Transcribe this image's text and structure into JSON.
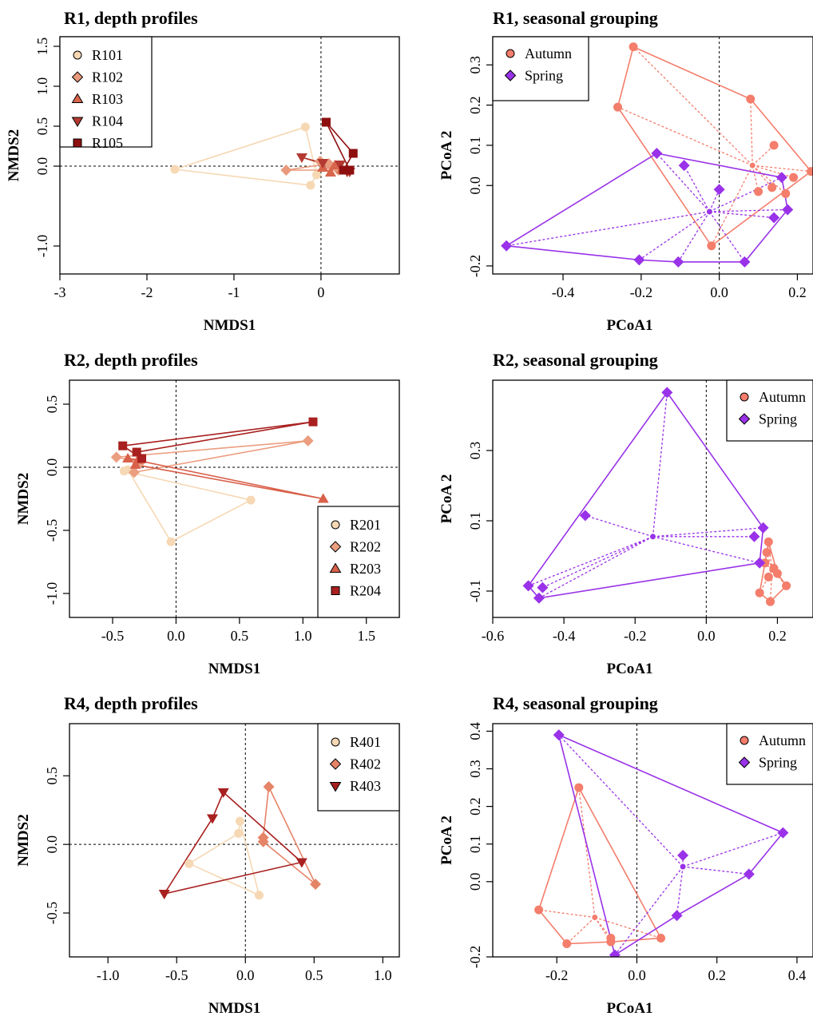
{
  "colors": {
    "R1_1": "#f6d8b4",
    "R1_2": "#e99a7c",
    "R1_3": "#d8654c",
    "R1_4": "#b43a31",
    "R1_5": "#8e0f0f",
    "R2_1": "#f6d8b4",
    "R2_2": "#ec9e80",
    "R2_3": "#d9604a",
    "R2_4": "#a8201f",
    "R4_1": "#f6d8b4",
    "R4_2": "#e58467",
    "R4_3": "#a8201f",
    "autumn": "#f47d6b",
    "spring": "#9932e8"
  },
  "chart_data": [
    {
      "id": "p1",
      "type": "scatter",
      "title": "R1, depth profiles",
      "xlabel": "NMDS1",
      "ylabel": "NMDS2",
      "xlim": [
        -3.0,
        0.9
      ],
      "ylim": [
        -1.35,
        1.62
      ],
      "xticks": [
        -3,
        -2,
        -1,
        0
      ],
      "xtick_labels": [
        "-3",
        "-2",
        "-1",
        "0"
      ],
      "yticks": [
        -1.0,
        0.0,
        0.5,
        1.0,
        1.5
      ],
      "ytick_labels": [
        "-1.0",
        "0.0",
        "0.5",
        "1.0",
        "1.5"
      ],
      "legend_pos": "top-left",
      "series": [
        {
          "name": "R101",
          "marker": "circle",
          "color_key": "R1_1",
          "connect": "polygon",
          "points": [
            [
              -0.18,
              0.49
            ],
            [
              -1.68,
              -0.04
            ],
            [
              -0.12,
              -0.24
            ],
            [
              -0.05,
              -0.11
            ]
          ]
        },
        {
          "name": "R102",
          "marker": "diamond",
          "color_key": "R1_2",
          "connect": "polygon",
          "points": [
            [
              -0.4,
              -0.05
            ],
            [
              0.09,
              0.03
            ],
            [
              -0.01,
              0.06
            ],
            [
              0.2,
              -0.05
            ]
          ]
        },
        {
          "name": "R103",
          "marker": "triangle-up",
          "color_key": "R1_3",
          "connect": "polygon",
          "points": [
            [
              0.02,
              -0.02
            ],
            [
              0.11,
              -0.08
            ],
            [
              0.16,
              0.01
            ],
            [
              0.24,
              -0.04
            ]
          ]
        },
        {
          "name": "R104",
          "marker": "triangle-down",
          "color_key": "R1_4",
          "connect": "polygon",
          "points": [
            [
              -0.22,
              0.11
            ],
            [
              0.02,
              0.04
            ],
            [
              0.22,
              0.02
            ],
            [
              0.3,
              -0.07
            ],
            [
              0.33,
              -0.07
            ]
          ]
        },
        {
          "name": "R105",
          "marker": "square",
          "color_key": "R1_5",
          "connect": "polygon",
          "points": [
            [
              0.06,
              0.55
            ],
            [
              0.37,
              0.16
            ],
            [
              0.26,
              -0.05
            ],
            [
              0.33,
              -0.05
            ]
          ]
        }
      ]
    },
    {
      "id": "p2",
      "type": "scatter",
      "title": "R1, seasonal grouping",
      "xlabel": "PCoA1",
      "ylabel": "PCoA 2",
      "xlim": [
        -0.58,
        0.24
      ],
      "ylim": [
        -0.22,
        0.37
      ],
      "xticks": [
        -0.4,
        -0.2,
        0.0,
        0.2
      ],
      "xtick_labels": [
        "-0.4",
        "-0.2",
        "0.0",
        "0.2"
      ],
      "yticks": [
        -0.2,
        0.0,
        0.1,
        0.2,
        0.3
      ],
      "ytick_labels": [
        "-0.2",
        "0.0",
        "0.1",
        "0.2",
        "0.3"
      ],
      "legend_pos": "top-left",
      "series": [
        {
          "name": "Autumn",
          "marker": "circle",
          "color_key": "autumn",
          "connect": "hull-spider",
          "centroid": [
            0.085,
            0.05
          ],
          "hull": [
            [
              -0.22,
              0.345
            ],
            [
              0.08,
              0.215
            ],
            [
              0.235,
              0.035
            ],
            [
              -0.02,
              -0.15
            ],
            [
              -0.26,
              0.195
            ]
          ],
          "points": [
            [
              -0.22,
              0.345
            ],
            [
              -0.26,
              0.195
            ],
            [
              0.08,
              0.215
            ],
            [
              0.14,
              0.1
            ],
            [
              0.235,
              0.035
            ],
            [
              0.19,
              0.02
            ],
            [
              0.135,
              -0.005
            ],
            [
              0.1,
              -0.015
            ],
            [
              0.17,
              -0.02
            ],
            [
              -0.02,
              -0.15
            ]
          ]
        },
        {
          "name": "Spring",
          "marker": "diamond",
          "color_key": "spring",
          "connect": "hull-spider",
          "centroid": [
            -0.025,
            -0.065
          ],
          "hull": [
            [
              -0.16,
              0.08
            ],
            [
              0.16,
              0.02
            ],
            [
              0.175,
              -0.06
            ],
            [
              0.065,
              -0.19
            ],
            [
              -0.105,
              -0.19
            ],
            [
              -0.205,
              -0.185
            ],
            [
              -0.545,
              -0.15
            ]
          ],
          "points": [
            [
              -0.16,
              0.08
            ],
            [
              -0.09,
              0.05
            ],
            [
              0.0,
              -0.01
            ],
            [
              0.16,
              0.02
            ],
            [
              0.175,
              -0.06
            ],
            [
              0.14,
              -0.08
            ],
            [
              0.065,
              -0.19
            ],
            [
              -0.105,
              -0.19
            ],
            [
              -0.205,
              -0.185
            ],
            [
              -0.545,
              -0.15
            ]
          ]
        }
      ]
    },
    {
      "id": "p3",
      "type": "scatter",
      "title": "R2, depth profiles",
      "xlabel": "NMDS1",
      "ylabel": "NMDS2",
      "xlim": [
        -0.84,
        1.76
      ],
      "ylim": [
        -1.19,
        0.69
      ],
      "xticks": [
        -0.5,
        0.0,
        0.5,
        1.0,
        1.5
      ],
      "xtick_labels": [
        "-0.5",
        "0.0",
        "0.5",
        "1.0",
        "1.5"
      ],
      "yticks": [
        -1.0,
        -0.5,
        0.0,
        0.5
      ],
      "ytick_labels": [
        "-1.0",
        "-0.5",
        "0.0",
        "0.5"
      ],
      "legend_pos": "bottom-right",
      "series": [
        {
          "name": "R201",
          "marker": "circle",
          "color_key": "R2_1",
          "connect": "polygon",
          "points": [
            [
              -0.41,
              -0.03
            ],
            [
              0.59,
              -0.26
            ],
            [
              -0.04,
              -0.59
            ],
            [
              -0.38,
              -0.02
            ]
          ]
        },
        {
          "name": "R202",
          "marker": "diamond",
          "color_key": "R2_2",
          "connect": "polygon",
          "points": [
            [
              -0.47,
              0.08
            ],
            [
              1.04,
              0.21
            ],
            [
              -0.33,
              -0.04
            ],
            [
              -0.28,
              0.04
            ]
          ]
        },
        {
          "name": "R203",
          "marker": "triangle-up",
          "color_key": "R2_3",
          "connect": "polygon",
          "points": [
            [
              -0.38,
              0.07
            ],
            [
              1.16,
              -0.25
            ],
            [
              -0.32,
              0.02
            ],
            [
              -0.3,
              0.06
            ]
          ]
        },
        {
          "name": "R204",
          "marker": "square",
          "color_key": "R2_4",
          "connect": "polygon",
          "points": [
            [
              -0.42,
              0.17
            ],
            [
              1.08,
              0.36
            ],
            [
              -0.31,
              0.12
            ],
            [
              -0.27,
              0.07
            ]
          ]
        }
      ]
    },
    {
      "id": "p4",
      "type": "scatter",
      "title": "R2, seasonal grouping",
      "xlabel": "PCoA1",
      "ylabel": "PCoA 2",
      "xlim": [
        -0.6,
        0.3
      ],
      "ylim": [
        -0.175,
        0.5
      ],
      "xticks": [
        -0.6,
        -0.4,
        -0.2,
        0.0,
        0.2
      ],
      "xtick_labels": [
        "-0.6",
        "-0.4",
        "-0.2",
        "0.0",
        "0.2"
      ],
      "yticks": [
        -0.1,
        0.1,
        0.3
      ],
      "ytick_labels": [
        "-0.1",
        "0.1",
        "0.3"
      ],
      "legend_pos": "top-right",
      "series": [
        {
          "name": "Autumn",
          "marker": "circle",
          "color_key": "autumn",
          "connect": "hull-spider",
          "centroid": [
            0.185,
            -0.04
          ],
          "hull": [
            [
              0.175,
              0.04
            ],
            [
              0.2,
              -0.05
            ],
            [
              0.225,
              -0.085
            ],
            [
              0.18,
              -0.13
            ],
            [
              0.15,
              -0.105
            ],
            [
              0.165,
              -0.02
            ]
          ],
          "points": [
            [
              0.175,
              0.04
            ],
            [
              0.17,
              0.01
            ],
            [
              0.19,
              -0.035
            ],
            [
              0.2,
              -0.05
            ],
            [
              0.175,
              -0.06
            ],
            [
              0.225,
              -0.085
            ],
            [
              0.18,
              -0.13
            ],
            [
              0.15,
              -0.105
            ],
            [
              0.165,
              -0.02
            ]
          ]
        },
        {
          "name": "Spring",
          "marker": "diamond",
          "color_key": "spring",
          "connect": "hull-spider",
          "centroid": [
            -0.15,
            0.055
          ],
          "hull": [
            [
              -0.11,
              0.465
            ],
            [
              0.16,
              0.08
            ],
            [
              0.15,
              -0.02
            ],
            [
              -0.47,
              -0.12
            ],
            [
              -0.5,
              -0.085
            ]
          ],
          "points": [
            [
              -0.11,
              0.465
            ],
            [
              -0.34,
              0.115
            ],
            [
              0.16,
              0.08
            ],
            [
              0.135,
              0.055
            ],
            [
              0.15,
              -0.02
            ],
            [
              -0.47,
              -0.12
            ],
            [
              -0.46,
              -0.09
            ],
            [
              -0.5,
              -0.085
            ]
          ]
        }
      ]
    },
    {
      "id": "p5",
      "type": "scatter",
      "title": "R4, depth profiles",
      "xlabel": "NMDS1",
      "ylabel": "NMDS2",
      "xlim": [
        -1.28,
        1.12
      ],
      "ylim": [
        -0.82,
        0.88
      ],
      "xticks": [
        -1.0,
        -0.5,
        0.0,
        0.5,
        1.0
      ],
      "xtick_labels": [
        "-1.0",
        "-0.5",
        "0.0",
        "0.5",
        "1.0"
      ],
      "yticks": [
        -0.5,
        0.0,
        0.5
      ],
      "ytick_labels": [
        "-0.5",
        "0.0",
        "0.5"
      ],
      "legend_pos": "top-right",
      "series": [
        {
          "name": "R401",
          "marker": "circle",
          "color_key": "R4_1",
          "connect": "polygon",
          "points": [
            [
              -0.04,
              0.17
            ],
            [
              0.1,
              -0.37
            ],
            [
              -0.41,
              -0.14
            ],
            [
              -0.05,
              0.08
            ]
          ]
        },
        {
          "name": "R402",
          "marker": "diamond",
          "color_key": "R4_2",
          "connect": "polygon",
          "points": [
            [
              0.17,
              0.42
            ],
            [
              0.51,
              -0.29
            ],
            [
              0.13,
              0.02
            ],
            [
              0.13,
              0.05
            ]
          ]
        },
        {
          "name": "R403",
          "marker": "triangle-down",
          "color_key": "R4_3",
          "connect": "polygon",
          "points": [
            [
              -0.16,
              0.38
            ],
            [
              0.41,
              -0.13
            ],
            [
              -0.59,
              -0.36
            ],
            [
              -0.24,
              0.19
            ]
          ]
        }
      ]
    },
    {
      "id": "p6",
      "type": "scatter",
      "title": "R4, seasonal grouping",
      "xlabel": "PCoA1",
      "ylabel": "PCoA 2",
      "xlim": [
        -0.36,
        0.44
      ],
      "ylim": [
        -0.2,
        0.42
      ],
      "xticks": [
        -0.2,
        0.0,
        0.2,
        0.4
      ],
      "xtick_labels": [
        "-0.2",
        "0.0",
        "0.2",
        "0.4"
      ],
      "yticks": [
        -0.2,
        0.0,
        0.1,
        0.2,
        0.3,
        0.4
      ],
      "ytick_labels": [
        "-0.2",
        "0.0",
        "0.1",
        "0.2",
        "0.3",
        "0.4"
      ],
      "legend_pos": "top-right",
      "series": [
        {
          "name": "Autumn",
          "marker": "circle",
          "color_key": "autumn",
          "connect": "hull-spider",
          "centroid": [
            -0.105,
            -0.095
          ],
          "hull": [
            [
              -0.145,
              0.25
            ],
            [
              0.06,
              -0.15
            ],
            [
              -0.065,
              -0.16
            ],
            [
              -0.175,
              -0.165
            ],
            [
              -0.245,
              -0.075
            ]
          ],
          "points": [
            [
              -0.145,
              0.25
            ],
            [
              -0.245,
              -0.075
            ],
            [
              0.06,
              -0.15
            ],
            [
              -0.065,
              -0.16
            ],
            [
              -0.065,
              -0.15
            ],
            [
              -0.175,
              -0.165
            ]
          ]
        },
        {
          "name": "Spring",
          "marker": "diamond",
          "color_key": "spring",
          "connect": "hull-spider",
          "centroid": [
            0.115,
            0.04
          ],
          "hull": [
            [
              -0.195,
              0.39
            ],
            [
              0.365,
              0.13
            ],
            [
              0.28,
              0.02
            ],
            [
              0.1,
              -0.09
            ],
            [
              -0.055,
              -0.195
            ]
          ],
          "points": [
            [
              -0.195,
              0.39
            ],
            [
              0.365,
              0.13
            ],
            [
              0.115,
              0.07
            ],
            [
              0.28,
              0.02
            ],
            [
              0.1,
              -0.09
            ],
            [
              -0.055,
              -0.195
            ]
          ]
        }
      ]
    }
  ]
}
